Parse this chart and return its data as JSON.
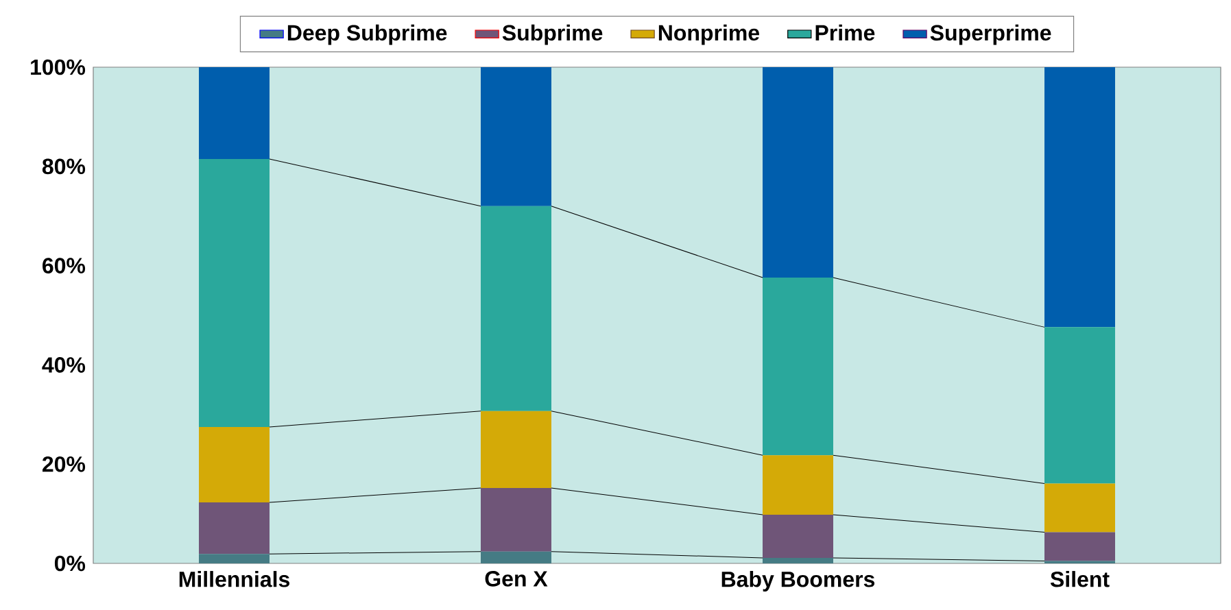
{
  "chart_data": {
    "type": "bar",
    "stacked": true,
    "legend": "top",
    "categories": [
      "Millennials",
      "Gen X",
      "Baby Boomers",
      "Silent"
    ],
    "series": [
      {
        "name": "Deep Subprime",
        "color": "#457b84",
        "values": [
          1.9,
          2.4,
          1.1,
          0.5
        ]
      },
      {
        "name": "Subprime",
        "color": "#6f5578",
        "values": [
          10.4,
          12.8,
          8.7,
          5.8
        ]
      },
      {
        "name": "Nonprime",
        "color": "#d4aa07",
        "values": [
          15.2,
          15.5,
          12.0,
          9.8
        ]
      },
      {
        "name": "Prime",
        "color": "#2aa89c",
        "values": [
          54.0,
          41.3,
          35.8,
          31.5
        ]
      },
      {
        "name": "Superprime",
        "color": "#005ead",
        "values": [
          18.5,
          28.0,
          42.4,
          52.4
        ]
      }
    ],
    "ylim": [
      0,
      100
    ],
    "yticks": [
      {
        "value": 0,
        "label": "0%"
      },
      {
        "value": 20,
        "label": "20%"
      },
      {
        "value": 40,
        "label": "40%"
      },
      {
        "value": 60,
        "label": "60%"
      },
      {
        "value": 80,
        "label": "80%"
      },
      {
        "value": 100,
        "label": "100%"
      }
    ]
  }
}
